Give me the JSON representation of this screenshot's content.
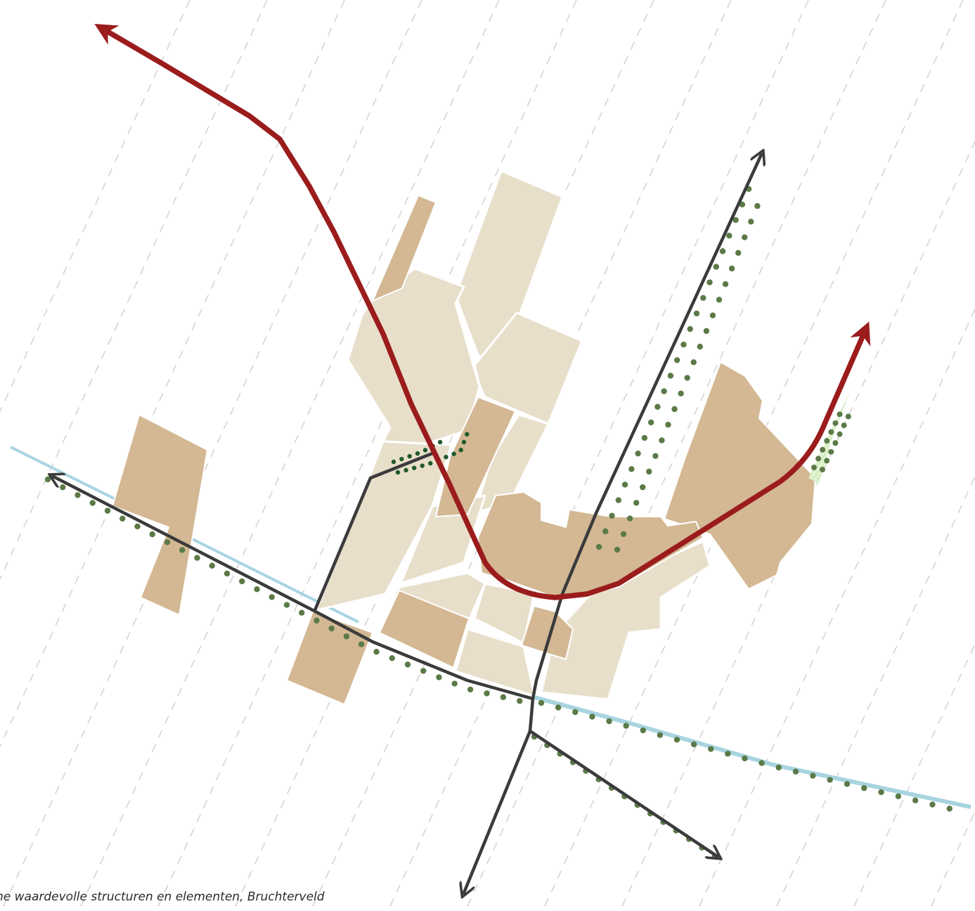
{
  "caption": "ne waardevolle structuren en elementen, Bruchterveld",
  "colors": {
    "background": "#ffffff",
    "parcel_light": "#e8dfcb",
    "parcel_dark": "#d3b893",
    "green_hatch": "#dff3cf",
    "water": "#a8d4e0",
    "main_road": "#9b1c1c",
    "secondary_road": "#3b3b3b",
    "tree_rows": "#5b7a47",
    "tree_rows_dark": "#1f5a2c",
    "grid_lines": "#cfcfcf"
  },
  "legend_semantics": {
    "main_road": "main-road-arrow",
    "secondary_road": "secondary-road-arrow",
    "tree_rows": "tree-row",
    "water": "watercourse",
    "parcels": "built-area-parcel"
  }
}
